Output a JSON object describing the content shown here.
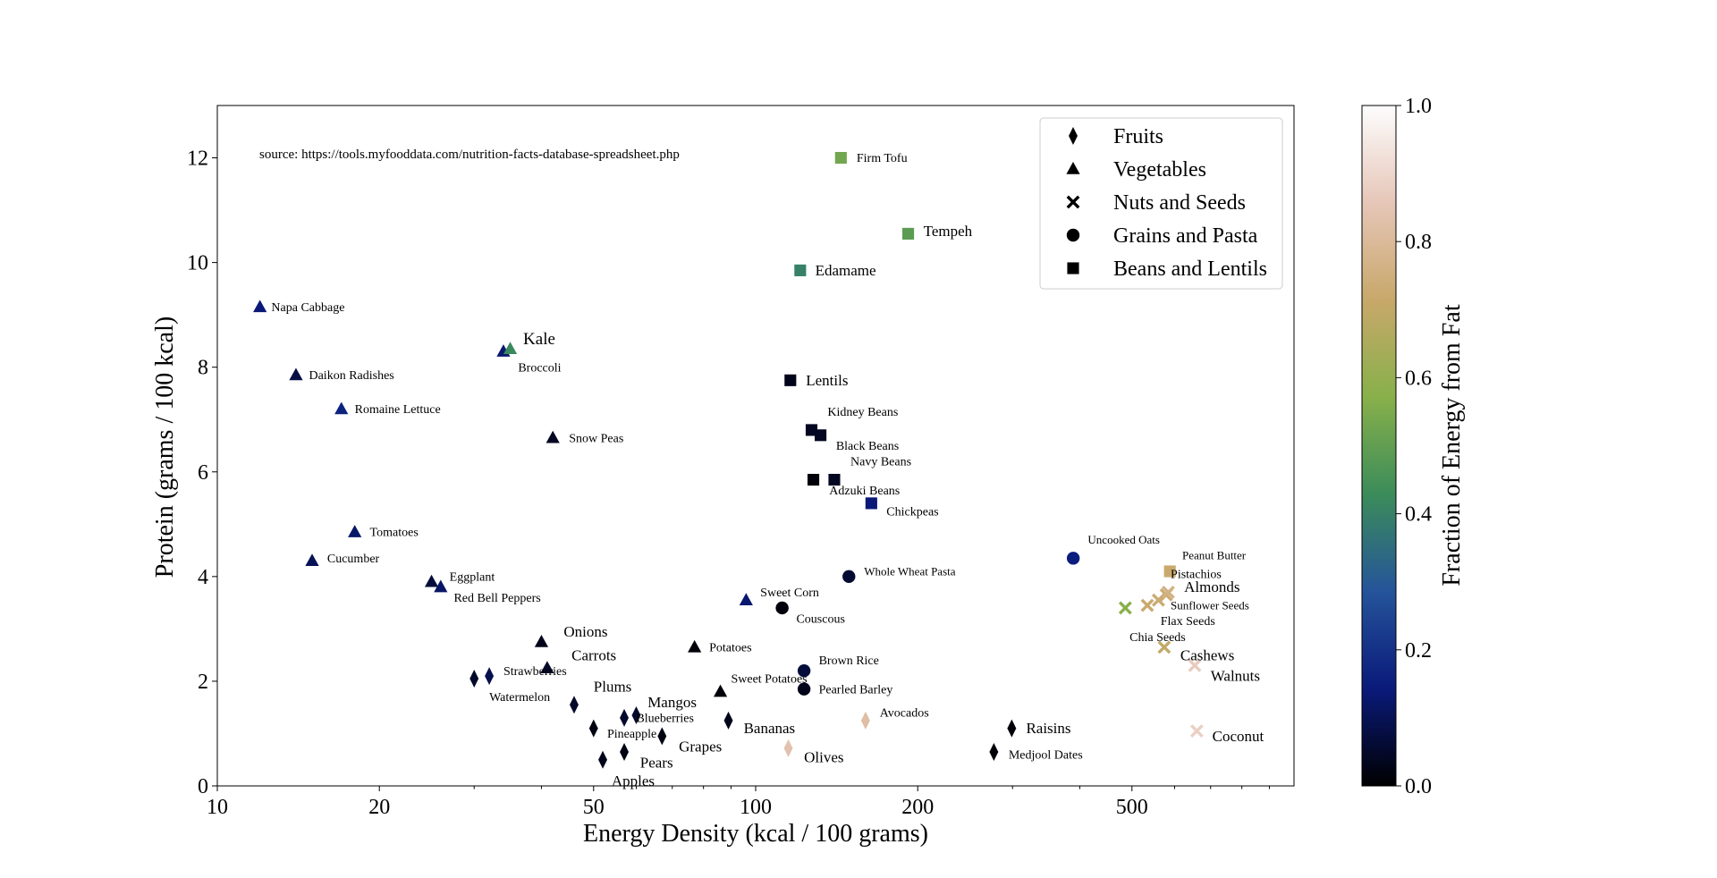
{
  "chart_data": {
    "type": "scatter",
    "title": "",
    "xlabel": "Energy Density (kcal / 100 grams)",
    "ylabel": "Protein (grams / 100 kcal)",
    "x_scale": "log",
    "xlim": [
      10,
      1000
    ],
    "ylim": [
      0,
      13
    ],
    "x_ticks": [
      10,
      20,
      50,
      100,
      200,
      500
    ],
    "y_ticks": [
      0,
      2,
      4,
      6,
      8,
      10,
      12
    ],
    "annotation": "source: https://tools.myfooddata.com/nutrition-facts-database-spreadsheet.php",
    "legend_position": "top-right",
    "legend": [
      {
        "label": "Fruits",
        "marker": "diamond"
      },
      {
        "label": "Vegetables",
        "marker": "triangle"
      },
      {
        "label": "Nuts and Seeds",
        "marker": "x"
      },
      {
        "label": "Grains and Pasta",
        "marker": "circle"
      },
      {
        "label": "Beans and Lentils",
        "marker": "square"
      }
    ],
    "colorbar": {
      "label": "Fraction of Energy from Fat",
      "range": [
        0,
        1
      ],
      "ticks": [
        "0.0",
        "0.2",
        "0.4",
        "0.6",
        "0.8",
        "1.0"
      ],
      "colormap": "gist_earth",
      "stops": [
        "#000000",
        "#0a1a7a",
        "#25549a",
        "#3b8c5a",
        "#88b04a",
        "#c8a86a",
        "#e6c6b8",
        "#fdfdfd"
      ]
    },
    "points": [
      {
        "name": "Napa Cabbage",
        "category": "Vegetables",
        "x": 12,
        "y": 9.15,
        "fat": 0.14
      },
      {
        "name": "Daikon Radishes",
        "category": "Vegetables",
        "x": 14,
        "y": 7.85,
        "fat": 0.08
      },
      {
        "name": "Romaine Lettuce",
        "category": "Vegetables",
        "x": 17,
        "y": 7.2,
        "fat": 0.16
      },
      {
        "name": "Tomatoes",
        "category": "Vegetables",
        "x": 18,
        "y": 4.85,
        "fat": 0.12
      },
      {
        "name": "Cucumber",
        "category": "Vegetables",
        "x": 15,
        "y": 4.3,
        "fat": 0.1
      },
      {
        "name": "Eggplant",
        "category": "Vegetables",
        "x": 25,
        "y": 3.9,
        "fat": 0.07
      },
      {
        "name": "Red Bell Peppers",
        "category": "Vegetables",
        "x": 26,
        "y": 3.8,
        "fat": 0.12
      },
      {
        "name": "Broccoli",
        "category": "Vegetables",
        "x": 34,
        "y": 8.3,
        "fat": 0.13
      },
      {
        "name": "Kale",
        "category": "Vegetables",
        "x": 35,
        "y": 8.35,
        "fat": 0.42
      },
      {
        "name": "Snow Peas",
        "category": "Vegetables",
        "x": 42,
        "y": 6.65,
        "fat": 0.04
      },
      {
        "name": "Onions",
        "category": "Vegetables",
        "x": 40,
        "y": 2.75,
        "fat": 0.03
      },
      {
        "name": "Carrots",
        "category": "Vegetables",
        "x": 41,
        "y": 2.25,
        "fat": 0.05
      },
      {
        "name": "Potatoes",
        "category": "Vegetables",
        "x": 77,
        "y": 2.65,
        "fat": 0.01
      },
      {
        "name": "Sweet Potatoes",
        "category": "Vegetables",
        "x": 86,
        "y": 1.8,
        "fat": 0.01
      },
      {
        "name": "Sweet Corn",
        "category": "Vegetables",
        "x": 96,
        "y": 3.55,
        "fat": 0.13
      },
      {
        "name": "Strawberries",
        "category": "Fruits",
        "x": 32,
        "y": 2.1,
        "fat": 0.09
      },
      {
        "name": "Watermelon",
        "category": "Fruits",
        "x": 30,
        "y": 2.05,
        "fat": 0.05
      },
      {
        "name": "Plums",
        "category": "Fruits",
        "x": 46,
        "y": 1.55,
        "fat": 0.05
      },
      {
        "name": "Pineapple",
        "category": "Fruits",
        "x": 50,
        "y": 1.1,
        "fat": 0.02
      },
      {
        "name": "Blueberries",
        "category": "Fruits",
        "x": 57,
        "y": 1.3,
        "fat": 0.05
      },
      {
        "name": "Mangos",
        "category": "Fruits",
        "x": 60,
        "y": 1.35,
        "fat": 0.05
      },
      {
        "name": "Grapes",
        "category": "Fruits",
        "x": 67,
        "y": 0.95,
        "fat": 0.02
      },
      {
        "name": "Pears",
        "category": "Fruits",
        "x": 57,
        "y": 0.65,
        "fat": 0.02
      },
      {
        "name": "Apples",
        "category": "Fruits",
        "x": 52,
        "y": 0.5,
        "fat": 0.03
      },
      {
        "name": "Bananas",
        "category": "Fruits",
        "x": 89,
        "y": 1.25,
        "fat": 0.03
      },
      {
        "name": "Olives",
        "category": "Fruits",
        "x": 115,
        "y": 0.72,
        "fat": 0.84
      },
      {
        "name": "Avocados",
        "category": "Fruits",
        "x": 160,
        "y": 1.25,
        "fat": 0.82
      },
      {
        "name": "Raisins",
        "category": "Fruits",
        "x": 299,
        "y": 1.1,
        "fat": 0.01
      },
      {
        "name": "Medjool Dates",
        "category": "Fruits",
        "x": 277,
        "y": 0.65,
        "fat": 0.01
      },
      {
        "name": "Couscous",
        "category": "Grains and Pasta",
        "x": 112,
        "y": 3.4,
        "fat": 0.01
      },
      {
        "name": "Whole Wheat Pasta",
        "category": "Grains and Pasta",
        "x": 149,
        "y": 4.0,
        "fat": 0.06
      },
      {
        "name": "Brown Rice",
        "category": "Grains and Pasta",
        "x": 123,
        "y": 2.2,
        "fat": 0.07
      },
      {
        "name": "Pearled Barley",
        "category": "Grains and Pasta",
        "x": 123,
        "y": 1.85,
        "fat": 0.03
      },
      {
        "name": "Uncooked Oats",
        "category": "Grains and Pasta",
        "x": 389,
        "y": 4.35,
        "fat": 0.15
      },
      {
        "name": "Firm Tofu",
        "category": "Beans and Lentils",
        "x": 144,
        "y": 12.0,
        "fat": 0.53
      },
      {
        "name": "Tempeh",
        "category": "Beans and Lentils",
        "x": 192,
        "y": 10.55,
        "fat": 0.49
      },
      {
        "name": "Edamame",
        "category": "Beans and Lentils",
        "x": 121,
        "y": 9.85,
        "fat": 0.4
      },
      {
        "name": "Lentils",
        "category": "Beans and Lentils",
        "x": 116,
        "y": 7.75,
        "fat": 0.03
      },
      {
        "name": "Kidney Beans",
        "category": "Beans and Lentils",
        "x": 127,
        "y": 6.8,
        "fat": 0.04
      },
      {
        "name": "Black Beans",
        "category": "Beans and Lentils",
        "x": 132,
        "y": 6.7,
        "fat": 0.04
      },
      {
        "name": "Navy Beans",
        "category": "Beans and Lentils",
        "x": 140,
        "y": 5.85,
        "fat": 0.04
      },
      {
        "name": "Adzuki Beans",
        "category": "Beans and Lentils",
        "x": 128,
        "y": 5.85,
        "fat": 0.01
      },
      {
        "name": "Chickpeas",
        "category": "Beans and Lentils",
        "x": 164,
        "y": 5.4,
        "fat": 0.14
      },
      {
        "name": "Peanut Butter",
        "category": "Beans and Lentils",
        "x": 588,
        "y": 4.1,
        "fat": 0.72
      },
      {
        "name": "Pistachios",
        "category": "Nuts and Seeds",
        "x": 560,
        "y": 3.55,
        "fat": 0.73
      },
      {
        "name": "Almonds",
        "category": "Nuts and Seeds",
        "x": 579,
        "y": 3.65,
        "fat": 0.73
      },
      {
        "name": "Sunflower Seeds",
        "category": "Nuts and Seeds",
        "x": 584,
        "y": 3.7,
        "fat": 0.76
      },
      {
        "name": "Flax Seeds",
        "category": "Nuts and Seeds",
        "x": 534,
        "y": 3.45,
        "fat": 0.72
      },
      {
        "name": "Chia Seeds",
        "category": "Nuts and Seeds",
        "x": 486,
        "y": 3.4,
        "fat": 0.57
      },
      {
        "name": "Cashews",
        "category": "Nuts and Seeds",
        "x": 574,
        "y": 2.65,
        "fat": 0.7
      },
      {
        "name": "Walnuts",
        "category": "Nuts and Seeds",
        "x": 654,
        "y": 2.3,
        "fat": 0.87
      },
      {
        "name": "Coconut",
        "category": "Nuts and Seeds",
        "x": 660,
        "y": 1.05,
        "fat": 0.88
      }
    ],
    "labels": [
      {
        "text": "Napa Cabbage",
        "x": 12.6,
        "y": 9.15,
        "size": "small"
      },
      {
        "text": "Daikon Radishes",
        "x": 14.8,
        "y": 7.85,
        "size": "small"
      },
      {
        "text": "Romaine Lettuce",
        "x": 18.0,
        "y": 7.2,
        "size": "small"
      },
      {
        "text": "Tomatoes",
        "x": 19.2,
        "y": 4.85,
        "size": "small"
      },
      {
        "text": "Cucumber",
        "x": 16.0,
        "y": 4.35,
        "size": "small"
      },
      {
        "text": "Eggplant",
        "x": 27.0,
        "y": 4.0,
        "size": "small"
      },
      {
        "text": "Red Bell Peppers",
        "x": 27.5,
        "y": 3.6,
        "size": "small"
      },
      {
        "text": "Kale",
        "x": 37.0,
        "y": 8.55,
        "size": "large"
      },
      {
        "text": "Broccoli",
        "x": 36.2,
        "y": 8.0,
        "size": "small"
      },
      {
        "text": "Snow Peas",
        "x": 45.0,
        "y": 6.65,
        "size": "small"
      },
      {
        "text": "Onions",
        "x": 44.0,
        "y": 2.95,
        "size": "medium"
      },
      {
        "text": "Carrots",
        "x": 45.5,
        "y": 2.5,
        "size": "medium"
      },
      {
        "text": "Strawberries",
        "x": 34.0,
        "y": 2.2,
        "size": "small"
      },
      {
        "text": "Watermelon",
        "x": 32.0,
        "y": 1.7,
        "size": "small"
      },
      {
        "text": "Plums",
        "x": 50.0,
        "y": 1.9,
        "size": "medium"
      },
      {
        "text": "Mangos",
        "x": 63.0,
        "y": 1.6,
        "size": "medium"
      },
      {
        "text": "Blueberries",
        "x": 60.0,
        "y": 1.3,
        "size": "small"
      },
      {
        "text": "Pineapple",
        "x": 53.0,
        "y": 1.0,
        "size": "small"
      },
      {
        "text": "Grapes",
        "x": 72.0,
        "y": 0.75,
        "size": "medium"
      },
      {
        "text": "Pears",
        "x": 61.0,
        "y": 0.45,
        "size": "medium"
      },
      {
        "text": "Apples",
        "x": 54.0,
        "y": 0.1,
        "size": "medium"
      },
      {
        "text": "Potatoes",
        "x": 82.0,
        "y": 2.65,
        "size": "small"
      },
      {
        "text": "Sweet Potatoes",
        "x": 90.0,
        "y": 2.05,
        "size": "small"
      },
      {
        "text": "Sweet Corn",
        "x": 102.0,
        "y": 3.7,
        "size": "small"
      },
      {
        "text": "Couscous",
        "x": 119.0,
        "y": 3.2,
        "size": "small"
      },
      {
        "text": "Bananas",
        "x": 95.0,
        "y": 1.1,
        "size": "medium"
      },
      {
        "text": "Olives",
        "x": 123.0,
        "y": 0.55,
        "size": "medium"
      },
      {
        "text": "Avocados",
        "x": 170.0,
        "y": 1.4,
        "size": "small"
      },
      {
        "text": "Brown Rice",
        "x": 131.0,
        "y": 2.4,
        "size": "small"
      },
      {
        "text": "Pearled Barley",
        "x": 131.0,
        "y": 1.85,
        "size": "small"
      },
      {
        "text": "Whole Wheat Pasta",
        "x": 159.0,
        "y": 4.1,
        "size": "xsmall"
      },
      {
        "text": "Raisins",
        "x": 318.0,
        "y": 1.1,
        "size": "medium"
      },
      {
        "text": "Medjool Dates",
        "x": 295.0,
        "y": 0.6,
        "size": "small"
      },
      {
        "text": "Uncooked Oats",
        "x": 414.0,
        "y": 4.7,
        "size": "xsmall"
      },
      {
        "text": "Firm Tofu",
        "x": 154.0,
        "y": 12.0,
        "size": "small"
      },
      {
        "text": "Tempeh",
        "x": 205.0,
        "y": 10.6,
        "size": "medium"
      },
      {
        "text": "Edamame",
        "x": 129.0,
        "y": 9.85,
        "size": "medium"
      },
      {
        "text": "Lentils",
        "x": 124.0,
        "y": 7.75,
        "size": "medium"
      },
      {
        "text": "Kidney Beans",
        "x": 136.0,
        "y": 7.15,
        "size": "small"
      },
      {
        "text": "Black Beans",
        "x": 141.0,
        "y": 6.5,
        "size": "small"
      },
      {
        "text": "Navy Beans",
        "x": 150.0,
        "y": 6.2,
        "size": "small"
      },
      {
        "text": "Adzuki Beans",
        "x": 137.0,
        "y": 5.65,
        "size": "small"
      },
      {
        "text": "Chickpeas",
        "x": 175.0,
        "y": 5.25,
        "size": "small"
      },
      {
        "text": "Peanut Butter",
        "x": 620.0,
        "y": 4.4,
        "size": "xsmall"
      },
      {
        "text": "Pistachios",
        "x": 590.0,
        "y": 4.05,
        "size": "small"
      },
      {
        "text": "Almonds",
        "x": 625.0,
        "y": 3.8,
        "size": "medium"
      },
      {
        "text": "Sunflower Seeds",
        "x": 590.0,
        "y": 3.45,
        "size": "xsmall"
      },
      {
        "text": "Flax Seeds",
        "x": 565.0,
        "y": 3.15,
        "size": "small"
      },
      {
        "text": "Chia Seeds",
        "x": 495.0,
        "y": 2.85,
        "size": "small"
      },
      {
        "text": "Cashews",
        "x": 615.0,
        "y": 2.5,
        "size": "medium"
      },
      {
        "text": "Walnuts",
        "x": 700.0,
        "y": 2.1,
        "size": "medium"
      },
      {
        "text": "Coconut",
        "x": 705.0,
        "y": 0.95,
        "size": "medium"
      }
    ]
  }
}
